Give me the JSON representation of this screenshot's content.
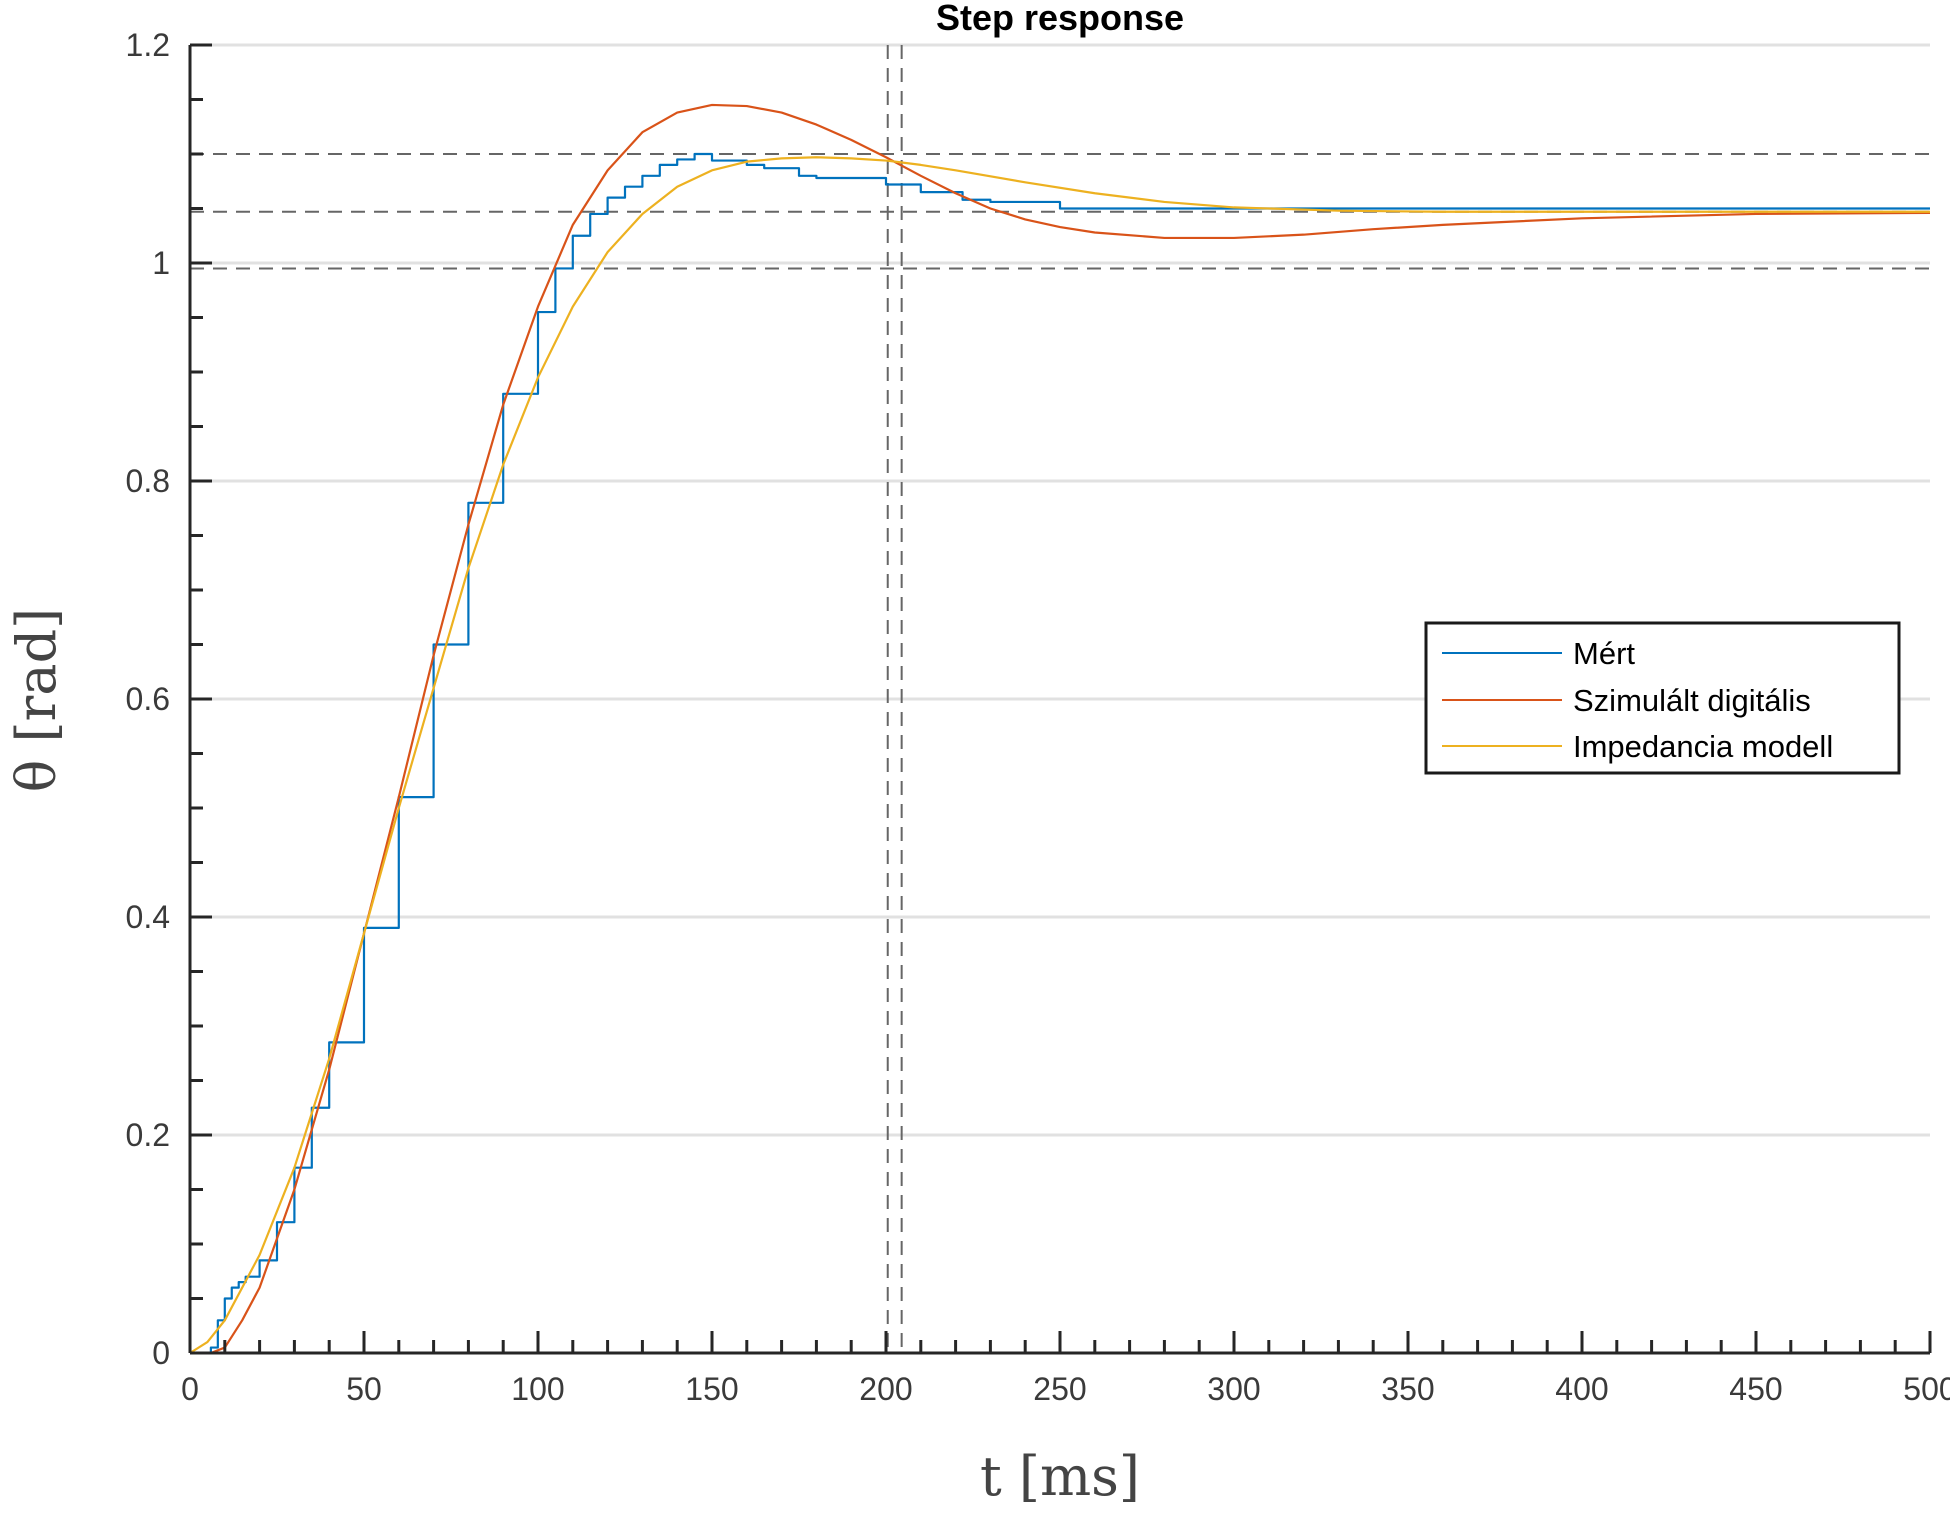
{
  "chart_data": {
    "type": "line",
    "title": "Step response",
    "xlabel": "t [ms]",
    "ylabel": "θ [rad]",
    "xlim": [
      0,
      500
    ],
    "ylim": [
      0,
      1.2
    ],
    "xticks": [
      0,
      50,
      100,
      150,
      200,
      250,
      300,
      350,
      400,
      450,
      500
    ],
    "yticks": [
      0,
      0.2,
      0.4,
      0.6,
      0.8,
      1,
      1.2
    ],
    "ytick_labels": [
      "0",
      "0.2",
      "0.4",
      "0.6",
      "0.8",
      "1",
      "1.2"
    ],
    "grid": "horizontal",
    "legend_position": "right",
    "reference_lines": {
      "horizontal": [
        0.995,
        1.047,
        1.1
      ],
      "vertical": [
        200.5,
        204.5
      ]
    },
    "series": [
      {
        "name": "Mért",
        "color": "#0072BD",
        "step": true,
        "x": [
          0,
          6,
          8,
          10,
          12,
          14,
          16,
          20,
          25,
          30,
          35,
          40,
          50,
          60,
          70,
          80,
          90,
          100,
          105,
          110,
          115,
          120,
          125,
          130,
          135,
          140,
          145,
          148,
          150,
          160,
          165,
          175,
          180,
          200,
          210,
          222,
          230,
          250,
          300,
          350,
          400,
          450,
          500
        ],
        "y": [
          0,
          0.005,
          0.03,
          0.05,
          0.06,
          0.065,
          0.07,
          0.085,
          0.12,
          0.17,
          0.225,
          0.285,
          0.39,
          0.51,
          0.65,
          0.78,
          0.88,
          0.955,
          0.995,
          1.025,
          1.045,
          1.06,
          1.07,
          1.08,
          1.09,
          1.095,
          1.1,
          1.1,
          1.094,
          1.09,
          1.087,
          1.08,
          1.078,
          1.072,
          1.065,
          1.058,
          1.056,
          1.05,
          1.05,
          1.05,
          1.05,
          1.05,
          1.05
        ]
      },
      {
        "name": "Szimulált digitális",
        "color": "#D95319",
        "step": false,
        "x": [
          0,
          6,
          10,
          15,
          20,
          30,
          40,
          50,
          60,
          70,
          80,
          90,
          100,
          110,
          120,
          130,
          140,
          150,
          160,
          170,
          180,
          190,
          200,
          210,
          220,
          230,
          240,
          250,
          260,
          280,
          300,
          320,
          340,
          360,
          400,
          450,
          500
        ],
        "y": [
          0,
          0,
          0.005,
          0.03,
          0.06,
          0.15,
          0.26,
          0.385,
          0.51,
          0.64,
          0.76,
          0.87,
          0.96,
          1.035,
          1.085,
          1.12,
          1.138,
          1.145,
          1.144,
          1.138,
          1.127,
          1.113,
          1.097,
          1.08,
          1.064,
          1.05,
          1.04,
          1.033,
          1.028,
          1.023,
          1.023,
          1.026,
          1.031,
          1.035,
          1.041,
          1.045,
          1.046
        ]
      },
      {
        "name": "Impedancia modell",
        "color": "#EDB120",
        "step": false,
        "x": [
          0,
          5,
          10,
          20,
          30,
          40,
          50,
          60,
          70,
          80,
          90,
          100,
          110,
          120,
          130,
          140,
          150,
          160,
          170,
          180,
          190,
          200,
          210,
          220,
          240,
          260,
          280,
          300,
          330,
          360,
          400,
          450,
          500
        ],
        "y": [
          0,
          0.01,
          0.03,
          0.09,
          0.17,
          0.27,
          0.385,
          0.5,
          0.61,
          0.72,
          0.815,
          0.895,
          0.96,
          1.01,
          1.045,
          1.07,
          1.085,
          1.093,
          1.096,
          1.097,
          1.096,
          1.094,
          1.09,
          1.085,
          1.074,
          1.064,
          1.056,
          1.051,
          1.048,
          1.047,
          1.047,
          1.047,
          1.047
        ]
      }
    ]
  }
}
